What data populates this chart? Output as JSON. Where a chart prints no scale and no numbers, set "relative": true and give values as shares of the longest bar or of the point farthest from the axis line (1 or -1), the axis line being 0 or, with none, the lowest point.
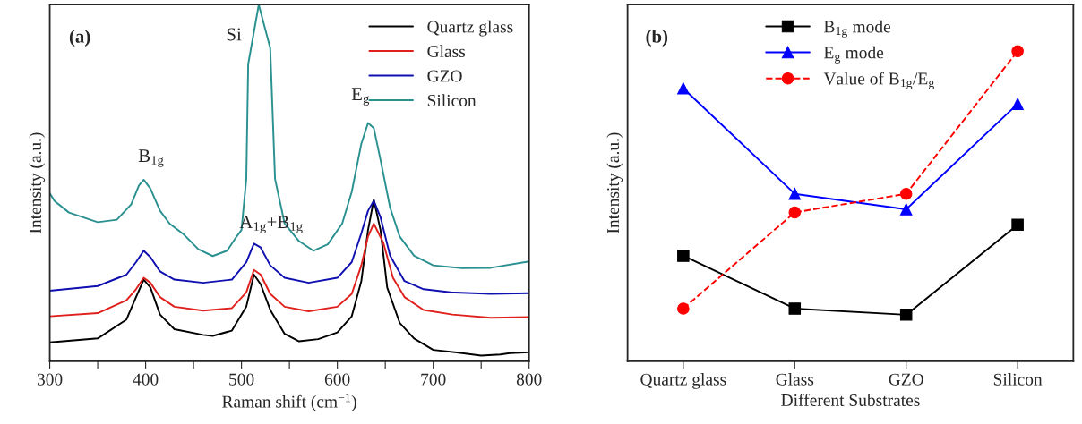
{
  "chart_data": [
    {
      "type": "line",
      "relative": true,
      "xlabel": "Raman shift (cm$^{−1}$)",
      "ylabel": "Intensity (a.u.)",
      "xlim": [
        300,
        800
      ],
      "xticks": [
        300,
        {
          "value": 350,
          "label": null
        },
        400,
        {
          "value": 450,
          "label": null
        },
        500,
        {
          "value": 550,
          "label": null
        },
        600,
        {
          "value": 650,
          "label": null
        },
        700,
        {
          "value": 750,
          "label": null
        },
        800
      ],
      "tick_labels": "x",
      "legend": "top right",
      "annotations": [
        "(a)",
        {
          "text": "Si",
          "x": 518,
          "y": 1.0
        },
        {
          "text": "B$_{1g}$",
          "x": 398,
          "y": 0.509
        },
        {
          "text": "A$_{1g}$+B$_{1g}$",
          "x": 513,
          "y": 0.33
        },
        {
          "text": "E$_{g}$",
          "x": 632,
          "y": 0.668
        }
      ],
      "series": [
        {
          "name": "Quartz glass",
          "color": "#000000",
          "x": [
            300,
            350,
            380,
            390,
            398,
            405,
            415,
            430,
            460,
            470,
            490,
            505,
            513,
            520,
            530,
            545,
            560,
            580,
            600,
            615,
            625,
            632,
            638,
            645,
            652,
            665,
            680,
            700,
            730,
            750,
            770,
            780,
            800
          ],
          "values": [
            0.053,
            0.064,
            0.117,
            0.18,
            0.229,
            0.207,
            0.131,
            0.09,
            0.074,
            0.071,
            0.086,
            0.153,
            0.243,
            0.216,
            0.144,
            0.077,
            0.056,
            0.062,
            0.081,
            0.126,
            0.225,
            0.368,
            0.453,
            0.368,
            0.207,
            0.108,
            0.064,
            0.032,
            0.023,
            0.016,
            0.019,
            0.023,
            0.025
          ]
        },
        {
          "name": "Glass",
          "color": "#e0201c",
          "x": [
            300,
            350,
            380,
            390,
            398,
            405,
            415,
            430,
            460,
            490,
            505,
            513,
            520,
            530,
            545,
            570,
            600,
            615,
            625,
            632,
            638,
            648,
            658,
            670,
            690,
            720,
            760,
            800
          ],
          "values": [
            0.126,
            0.135,
            0.171,
            0.202,
            0.234,
            0.22,
            0.18,
            0.153,
            0.142,
            0.149,
            0.193,
            0.256,
            0.243,
            0.189,
            0.153,
            0.14,
            0.153,
            0.189,
            0.269,
            0.35,
            0.386,
            0.332,
            0.234,
            0.18,
            0.144,
            0.131,
            0.122,
            0.124
          ]
        },
        {
          "name": "GZO",
          "color": "#1010b0",
          "x": [
            300,
            350,
            380,
            390,
            398,
            405,
            415,
            430,
            460,
            490,
            505,
            513,
            520,
            530,
            545,
            570,
            600,
            615,
            625,
            632,
            638,
            645,
            655,
            670,
            690,
            720,
            760,
            800
          ],
          "values": [
            0.198,
            0.211,
            0.243,
            0.278,
            0.31,
            0.292,
            0.252,
            0.229,
            0.22,
            0.229,
            0.278,
            0.33,
            0.319,
            0.269,
            0.234,
            0.22,
            0.234,
            0.278,
            0.359,
            0.422,
            0.45,
            0.404,
            0.296,
            0.225,
            0.202,
            0.193,
            0.189,
            0.191
          ]
        },
        {
          "name": "Silicon",
          "color": "#2a9090",
          "x": [
            300,
            305,
            320,
            350,
            370,
            385,
            393,
            398,
            405,
            415,
            425,
            440,
            455,
            470,
            485,
            495,
            500,
            505,
            507,
            518,
            530,
            535,
            545,
            560,
            575,
            590,
            605,
            615,
            625,
            632,
            638,
            645,
            655,
            665,
            680,
            700,
            730,
            760,
            800
          ],
          "values": [
            0.471,
            0.449,
            0.417,
            0.39,
            0.397,
            0.44,
            0.493,
            0.509,
            0.484,
            0.422,
            0.386,
            0.355,
            0.314,
            0.295,
            0.31,
            0.35,
            0.368,
            0.511,
            0.833,
            1.0,
            0.878,
            0.511,
            0.386,
            0.337,
            0.31,
            0.328,
            0.386,
            0.475,
            0.61,
            0.668,
            0.654,
            0.565,
            0.431,
            0.35,
            0.296,
            0.269,
            0.261,
            0.262,
            0.28
          ]
        }
      ]
    },
    {
      "type": "line",
      "relative": true,
      "xlabel": "Different Substrates",
      "ylabel": "Intensity (a.u.)",
      "categories": [
        "Quartz glass",
        "Glass",
        "GZO",
        "Silicon"
      ],
      "tick_labels": "x",
      "legend": "top",
      "annotations": [
        "(b)"
      ],
      "series": [
        {
          "name": "B$_{1g}$ mode",
          "color": "#000000",
          "marker": "square",
          "line_style": "solid",
          "values": [
            0.34,
            0.17,
            0.15,
            0.44
          ]
        },
        {
          "name": "E$_{g}$ mode",
          "color": "#0000ff",
          "marker": "triangle",
          "line_style": "solid",
          "values": [
            0.88,
            0.54,
            0.49,
            0.83
          ]
        },
        {
          "name": "Value of B$_{1g}$/E$_{g}$",
          "color": "#ff0000",
          "marker": "circle",
          "line_style": "dashed",
          "values": [
            0.17,
            0.48,
            0.54,
            1.0
          ]
        }
      ]
    }
  ]
}
